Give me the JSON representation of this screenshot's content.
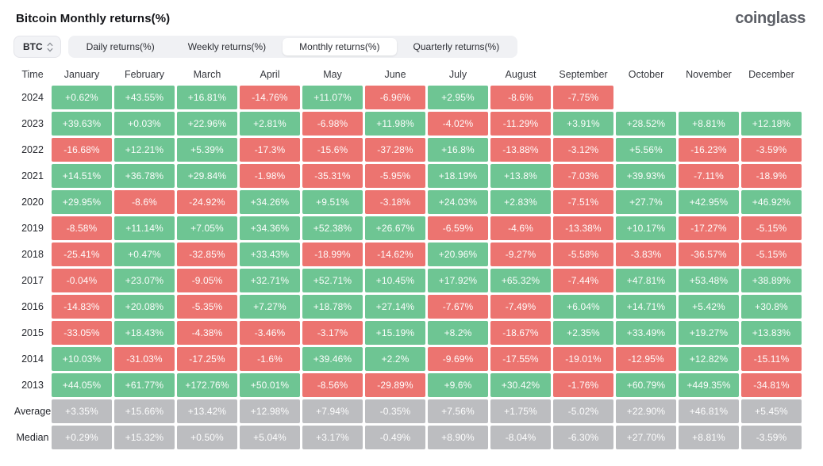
{
  "header": {
    "title": "Bitcoin Monthly returns(%)",
    "logo": "coinglass"
  },
  "toolbar": {
    "symbol_select": {
      "value": "BTC"
    },
    "tabs": [
      {
        "label": "Daily returns(%)",
        "active": false
      },
      {
        "label": "Weekly returns(%)",
        "active": false
      },
      {
        "label": "Monthly returns(%)",
        "active": true
      },
      {
        "label": "Quarterly returns(%)",
        "active": false
      }
    ]
  },
  "colors": {
    "positive": "#6ec593",
    "negative": "#ec7470",
    "neutral": "#bcbdc0"
  },
  "table": {
    "time_label": "Time",
    "months": [
      "January",
      "February",
      "March",
      "April",
      "May",
      "June",
      "July",
      "August",
      "September",
      "October",
      "November",
      "December"
    ],
    "rows": [
      {
        "label": "2024",
        "summary": false,
        "values": [
          "+0.62%",
          "+43.55%",
          "+16.81%",
          "-14.76%",
          "+11.07%",
          "-6.96%",
          "+2.95%",
          "-8.6%",
          "-7.75%",
          null,
          null,
          null
        ]
      },
      {
        "label": "2023",
        "summary": false,
        "values": [
          "+39.63%",
          "+0.03%",
          "+22.96%",
          "+2.81%",
          "-6.98%",
          "+11.98%",
          "-4.02%",
          "-11.29%",
          "+3.91%",
          "+28.52%",
          "+8.81%",
          "+12.18%"
        ]
      },
      {
        "label": "2022",
        "summary": false,
        "values": [
          "-16.68%",
          "+12.21%",
          "+5.39%",
          "-17.3%",
          "-15.6%",
          "-37.28%",
          "+16.8%",
          "-13.88%",
          "-3.12%",
          "+5.56%",
          "-16.23%",
          "-3.59%"
        ]
      },
      {
        "label": "2021",
        "summary": false,
        "values": [
          "+14.51%",
          "+36.78%",
          "+29.84%",
          "-1.98%",
          "-35.31%",
          "-5.95%",
          "+18.19%",
          "+13.8%",
          "-7.03%",
          "+39.93%",
          "-7.11%",
          "-18.9%"
        ]
      },
      {
        "label": "2020",
        "summary": false,
        "values": [
          "+29.95%",
          "-8.6%",
          "-24.92%",
          "+34.26%",
          "+9.51%",
          "-3.18%",
          "+24.03%",
          "+2.83%",
          "-7.51%",
          "+27.7%",
          "+42.95%",
          "+46.92%"
        ]
      },
      {
        "label": "2019",
        "summary": false,
        "values": [
          "-8.58%",
          "+11.14%",
          "+7.05%",
          "+34.36%",
          "+52.38%",
          "+26.67%",
          "-6.59%",
          "-4.6%",
          "-13.38%",
          "+10.17%",
          "-17.27%",
          "-5.15%"
        ]
      },
      {
        "label": "2018",
        "summary": false,
        "values": [
          "-25.41%",
          "+0.47%",
          "-32.85%",
          "+33.43%",
          "-18.99%",
          "-14.62%",
          "+20.96%",
          "-9.27%",
          "-5.58%",
          "-3.83%",
          "-36.57%",
          "-5.15%"
        ]
      },
      {
        "label": "2017",
        "summary": false,
        "values": [
          "-0.04%",
          "+23.07%",
          "-9.05%",
          "+32.71%",
          "+52.71%",
          "+10.45%",
          "+17.92%",
          "+65.32%",
          "-7.44%",
          "+47.81%",
          "+53.48%",
          "+38.89%"
        ]
      },
      {
        "label": "2016",
        "summary": false,
        "values": [
          "-14.83%",
          "+20.08%",
          "-5.35%",
          "+7.27%",
          "+18.78%",
          "+27.14%",
          "-7.67%",
          "-7.49%",
          "+6.04%",
          "+14.71%",
          "+5.42%",
          "+30.8%"
        ]
      },
      {
        "label": "2015",
        "summary": false,
        "values": [
          "-33.05%",
          "+18.43%",
          "-4.38%",
          "-3.46%",
          "-3.17%",
          "+15.19%",
          "+8.2%",
          "-18.67%",
          "+2.35%",
          "+33.49%",
          "+19.27%",
          "+13.83%"
        ]
      },
      {
        "label": "2014",
        "summary": false,
        "values": [
          "+10.03%",
          "-31.03%",
          "-17.25%",
          "-1.6%",
          "+39.46%",
          "+2.2%",
          "-9.69%",
          "-17.55%",
          "-19.01%",
          "-12.95%",
          "+12.82%",
          "-15.11%"
        ]
      },
      {
        "label": "2013",
        "summary": false,
        "values": [
          "+44.05%",
          "+61.77%",
          "+172.76%",
          "+50.01%",
          "-8.56%",
          "-29.89%",
          "+9.6%",
          "+30.42%",
          "-1.76%",
          "+60.79%",
          "+449.35%",
          "-34.81%"
        ]
      },
      {
        "label": "Average",
        "summary": true,
        "values": [
          "+3.35%",
          "+15.66%",
          "+13.42%",
          "+12.98%",
          "+7.94%",
          "-0.35%",
          "+7.56%",
          "+1.75%",
          "-5.02%",
          "+22.90%",
          "+46.81%",
          "+5.45%"
        ]
      },
      {
        "label": "Median",
        "summary": true,
        "values": [
          "+0.29%",
          "+15.32%",
          "+0.50%",
          "+5.04%",
          "+3.17%",
          "-0.49%",
          "+8.90%",
          "-8.04%",
          "-6.30%",
          "+27.70%",
          "+8.81%",
          "-3.59%"
        ]
      }
    ]
  }
}
